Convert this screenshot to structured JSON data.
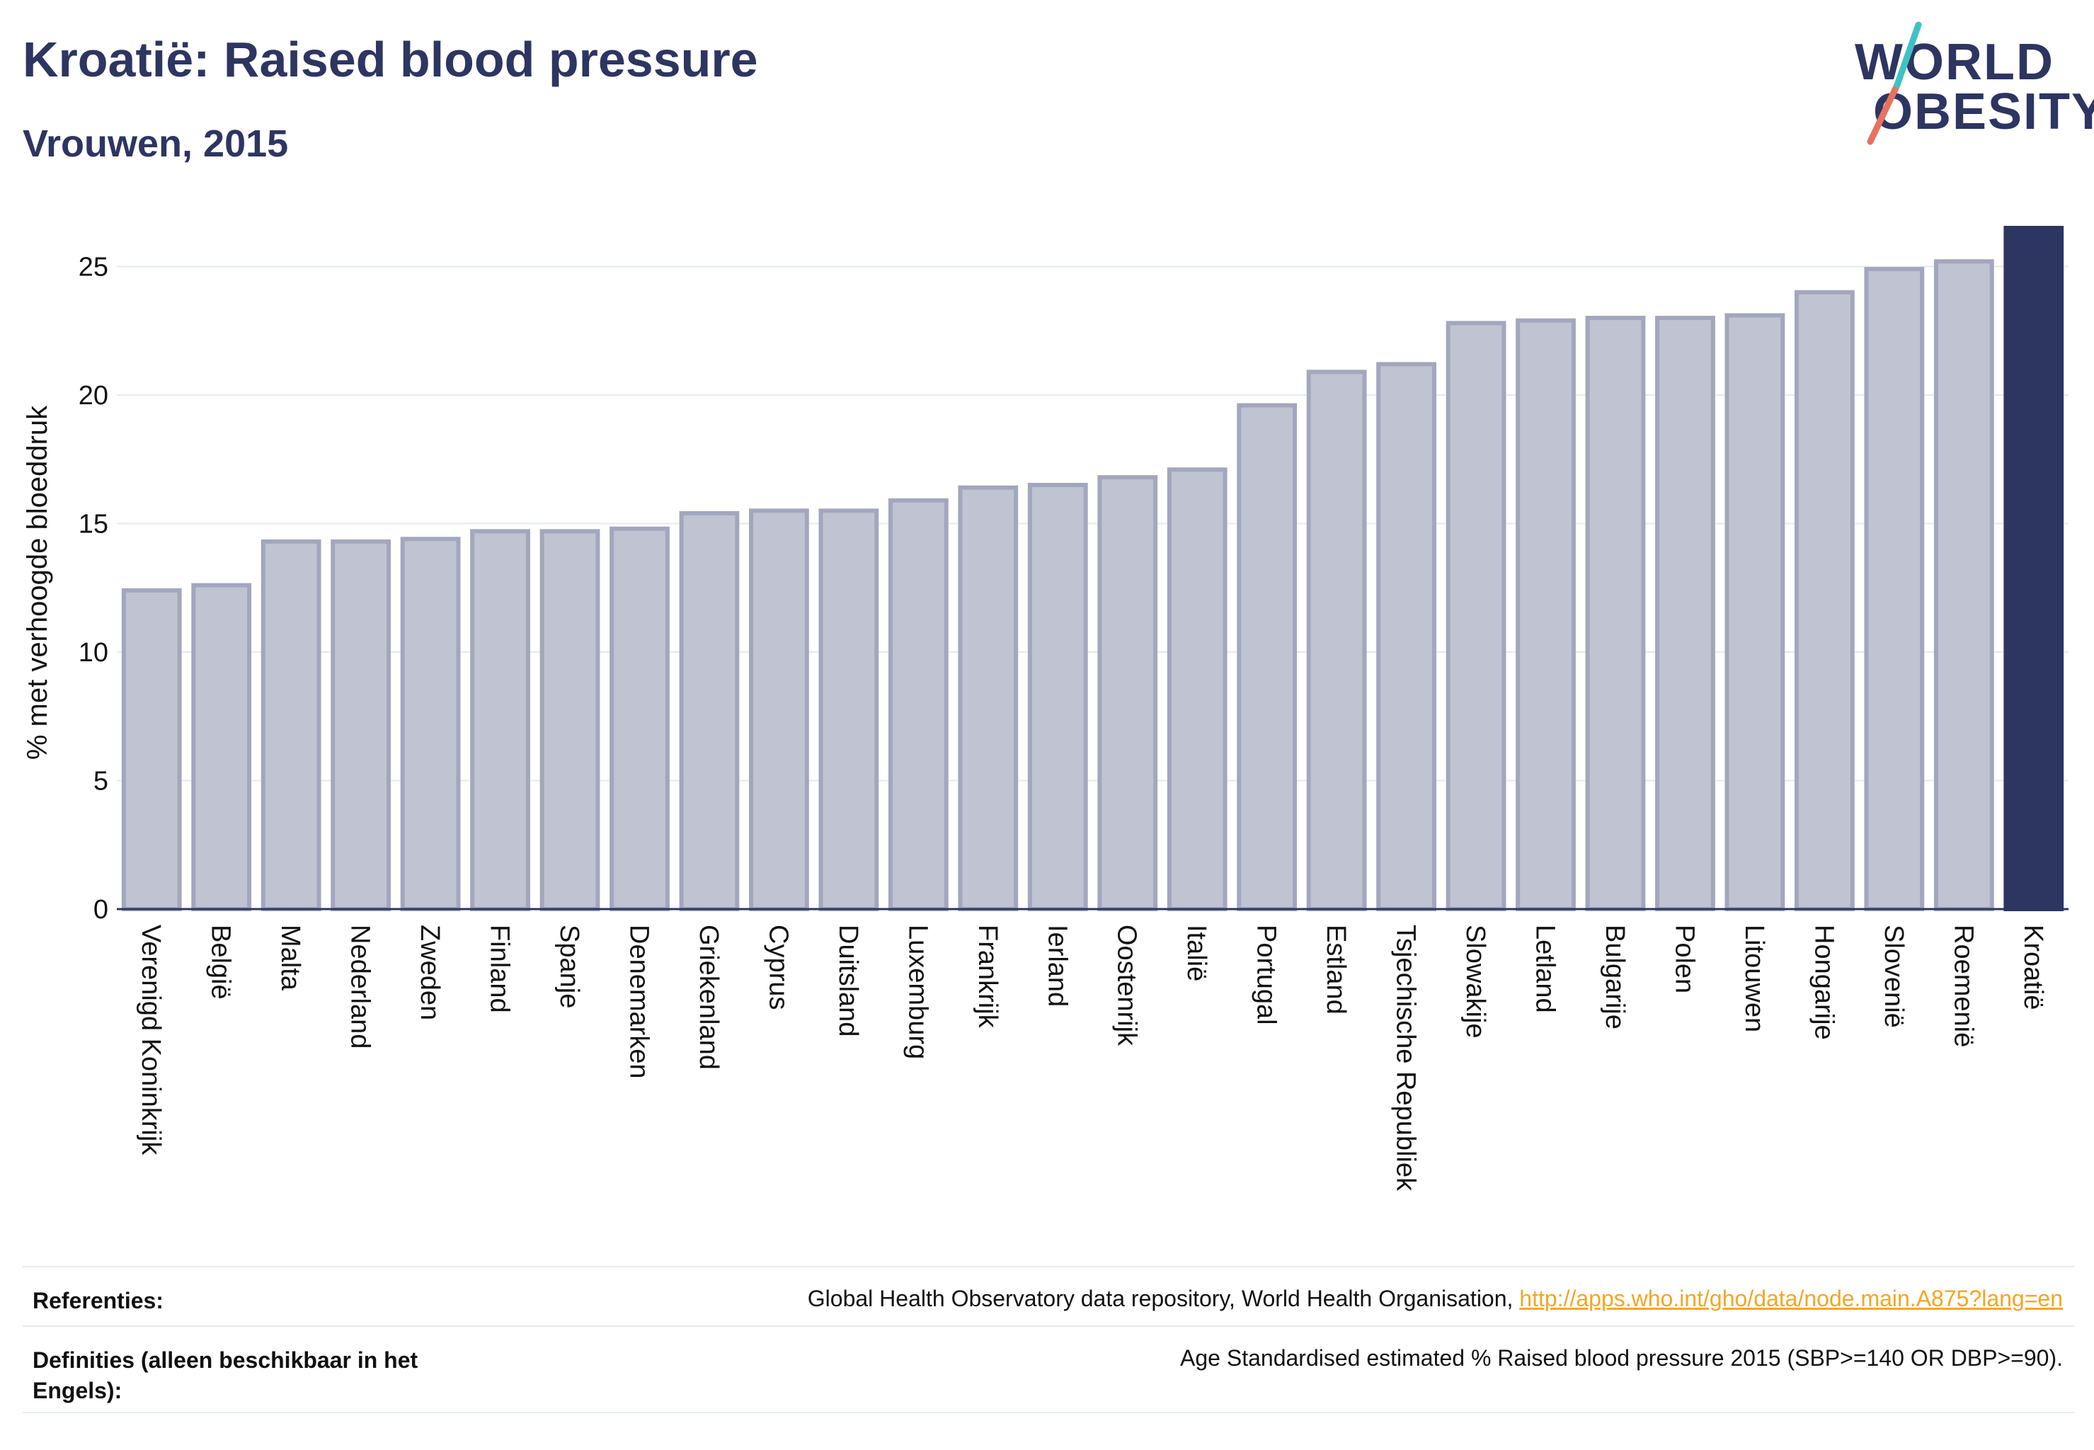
{
  "header": {
    "title": "Kroatië: Raised blood pressure",
    "subtitle": "Vrouwen, 2015"
  },
  "logo": {
    "line1": "WORLD",
    "line2": "OBESITY",
    "slash_colors": [
      "#e8715f",
      "#3fc2c4"
    ]
  },
  "chart_data": {
    "type": "bar",
    "ylabel": "% met verhoogde bloeddruk",
    "ylim": [
      0,
      26.5
    ],
    "yticks": [
      0,
      5,
      10,
      15,
      20,
      25
    ],
    "grid": true,
    "highlight": "Kroatië",
    "colors": {
      "bar": "#c0c3d1",
      "bar_border": "#a2a7bd",
      "highlight": "#2d3561"
    },
    "categories": [
      "Verenigd Koninkrijk",
      "België",
      "Malta",
      "Nederland",
      "Zweden",
      "Finland",
      "Spanje",
      "Denemarken",
      "Griekenland",
      "Cyprus",
      "Duitsland",
      "Luxemburg",
      "Frankrijk",
      "Ierland",
      "Oostenrijk",
      "Italië",
      "Portugal",
      "Estland",
      "Tsjechische Republiek",
      "Slowakije",
      "Letland",
      "Bulgarije",
      "Polen",
      "Litouwen",
      "Hongarije",
      "Slovenië",
      "Roemenië",
      "Kroatië"
    ],
    "values": [
      12.4,
      12.6,
      14.3,
      14.3,
      14.4,
      14.7,
      14.7,
      14.8,
      15.4,
      15.5,
      15.5,
      15.9,
      16.4,
      16.5,
      16.8,
      17.1,
      19.6,
      20.9,
      21.2,
      22.8,
      22.9,
      23.0,
      23.0,
      23.1,
      24.0,
      24.9,
      25.2,
      26.5
    ]
  },
  "footer": {
    "references_label": "Referenties:",
    "references_text": "Global Health Observatory data repository, World Health Organisation, ",
    "references_link": "http://apps.who.int/gho/data/node.main.A875?lang=en",
    "definitions_label": "Definities (alleen beschikbaar in het Engels):",
    "definitions_text": "Age Standardised estimated % Raised blood pressure 2015 (SBP>=140 OR DBP>=90)."
  }
}
